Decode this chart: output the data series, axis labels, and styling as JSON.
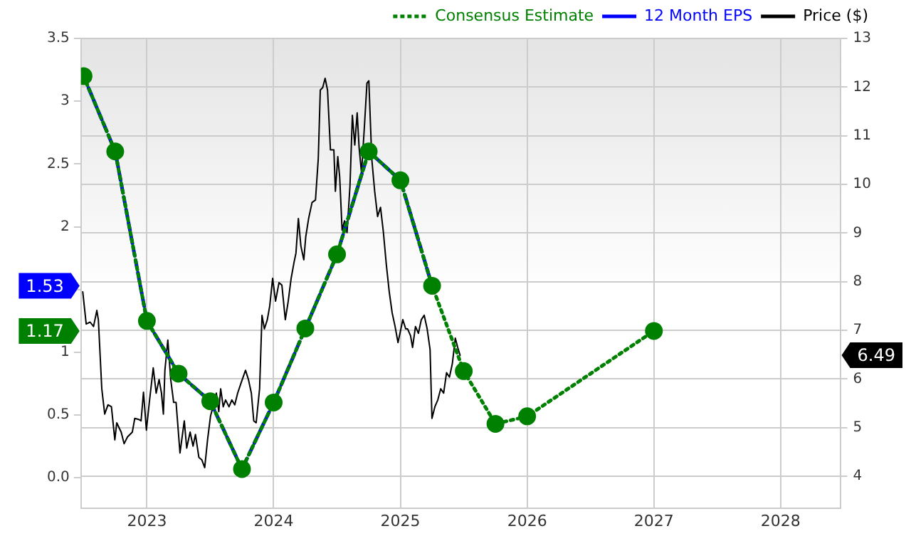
{
  "chart_data": {
    "type": "line",
    "xlim": [
      2022.48,
      2028.47
    ],
    "xticks": [
      2023,
      2024,
      2025,
      2026,
      2027,
      2028
    ],
    "ylim": [
      -0.24,
      3.5
    ],
    "yticks": [
      {
        "value": 0,
        "label": "0.0"
      },
      0.5,
      1,
      {
        "value": 1.5,
        "label": null
      },
      2,
      2.5,
      3,
      3.5
    ],
    "y2lim": [
      3.35,
      13
    ],
    "y2ticks": [
      4,
      5,
      6,
      7,
      8,
      9,
      10,
      11,
      12,
      13
    ],
    "grid": true,
    "legend": "top right",
    "series": [
      {
        "name": "Consensus Estimate",
        "color": "#008000",
        "line_style": "dotted",
        "marker": "circle",
        "x": [
          2022.5,
          2022.75,
          2023.0,
          2023.25,
          2023.5,
          2023.75,
          2024.0,
          2024.25,
          2024.5,
          2024.75,
          2025.0,
          2025.25,
          2025.5,
          2025.75,
          2026.0,
          2027.0
        ],
        "values": [
          3.2,
          2.6,
          1.25,
          0.83,
          0.61,
          0.07,
          0.6,
          1.19,
          1.78,
          2.6,
          2.37,
          1.53,
          0.85,
          0.43,
          0.49,
          1.17
        ]
      },
      {
        "name": "12 Month EPS",
        "color": "#0000ff",
        "line_style": "dashed",
        "marker": "none",
        "x": [
          2022.5,
          2022.75,
          2023.0,
          2023.25,
          2023.5,
          2023.75,
          2024.0,
          2024.25,
          2024.5,
          2024.75,
          2025.0,
          2025.25
        ],
        "values": [
          3.2,
          2.6,
          1.25,
          0.83,
          0.61,
          0.07,
          0.6,
          1.19,
          1.78,
          2.6,
          2.37,
          1.53
        ]
      },
      {
        "name": "Price ($)",
        "color": "#000000",
        "line_style": "solid",
        "marker": "none",
        "axis": "y2",
        "x": [
          2022.494,
          2022.521,
          2022.552,
          2022.579,
          2022.605,
          2022.617,
          2022.644,
          2022.667,
          2022.693,
          2022.72,
          2022.747,
          2022.762,
          2022.797,
          2022.82,
          2022.847,
          2022.885,
          2022.904,
          2022.935,
          2022.954,
          2022.973,
          2022.996,
          2023.019,
          2023.05,
          2023.073,
          2023.096,
          2023.115,
          2023.13,
          2023.142,
          2023.165,
          2023.188,
          2023.211,
          2023.23,
          2023.261,
          2023.295,
          2023.314,
          2023.341,
          2023.364,
          2023.383,
          2023.41,
          2023.433,
          2023.456,
          2023.479,
          2023.502,
          2023.525,
          2023.548,
          2023.567,
          2023.582,
          2023.602,
          2023.621,
          2023.648,
          2023.67,
          2023.693,
          2023.716,
          2023.747,
          2023.778,
          2023.801,
          2023.824,
          2023.843,
          2023.862,
          2023.889,
          2023.908,
          2023.927,
          2023.95,
          2023.969,
          2023.992,
          2024.015,
          2024.042,
          2024.065,
          2024.092,
          2024.115,
          2024.138,
          2024.161,
          2024.176,
          2024.195,
          2024.215,
          2024.238,
          2024.253,
          2024.276,
          2024.303,
          2024.33,
          2024.352,
          2024.368,
          2024.387,
          2024.406,
          2024.425,
          2024.448,
          2024.475,
          2024.487,
          2024.506,
          2024.521,
          2024.54,
          2024.559,
          2024.579,
          2024.602,
          2024.621,
          2024.64,
          2024.659,
          2024.674,
          2024.693,
          2024.716,
          2024.736,
          2024.751,
          2024.774,
          2024.797,
          2024.82,
          2024.843,
          2024.866,
          2024.889,
          2024.912,
          2024.935,
          2024.958,
          2024.981,
          2025.004,
          2025.019,
          2025.042,
          2025.057,
          2025.08,
          2025.096,
          2025.119,
          2025.142,
          2025.165,
          2025.188,
          2025.211,
          2025.234,
          2025.249,
          2025.272,
          2025.295,
          2025.318,
          2025.341,
          2025.364,
          2025.387,
          2025.41,
          2025.433,
          2025.452,
          2025.471
        ],
        "values": [
          7.79,
          7.13,
          7.17,
          7.08,
          7.41,
          7.22,
          5.8,
          5.28,
          5.47,
          5.43,
          4.75,
          5.1,
          4.91,
          4.67,
          4.81,
          4.91,
          5.19,
          5.17,
          5.14,
          5.73,
          4.95,
          5.52,
          6.23,
          5.71,
          5.99,
          5.71,
          5.28,
          6.18,
          6.8,
          5.99,
          5.52,
          5.52,
          4.48,
          5.14,
          4.58,
          4.91,
          4.62,
          4.86,
          4.39,
          4.34,
          4.18,
          4.76,
          5.24,
          5.47,
          5.71,
          5.33,
          5.8,
          5.43,
          5.57,
          5.43,
          5.57,
          5.47,
          5.71,
          5.95,
          6.18,
          5.99,
          5.71,
          5.14,
          5.1,
          5.8,
          7.31,
          7.03,
          7.22,
          7.5,
          8.07,
          7.6,
          7.98,
          7.93,
          7.22,
          7.6,
          8.07,
          8.4,
          8.59,
          9.3,
          8.73,
          8.45,
          8.92,
          9.3,
          9.63,
          9.68,
          10.53,
          11.94,
          11.99,
          12.18,
          11.94,
          10.71,
          10.71,
          9.86,
          10.57,
          10.15,
          9.06,
          9.25,
          9.01,
          9.96,
          11.42,
          10.81,
          11.47,
          10.76,
          10.24,
          11.19,
          12.08,
          12.13,
          10.53,
          9.86,
          9.34,
          9.53,
          9.01,
          8.35,
          7.79,
          7.36,
          7.08,
          6.75,
          7.03,
          7.22,
          7.03,
          7.03,
          6.89,
          6.65,
          7.08,
          6.94,
          7.22,
          7.31,
          7.03,
          6.61,
          5.19,
          5.43,
          5.57,
          5.8,
          5.71,
          6.13,
          6.04,
          6.32,
          6.84,
          6.65,
          6.49
        ]
      }
    ],
    "annotations": [
      "1.17",
      "1.53",
      "6.49"
    ]
  }
}
